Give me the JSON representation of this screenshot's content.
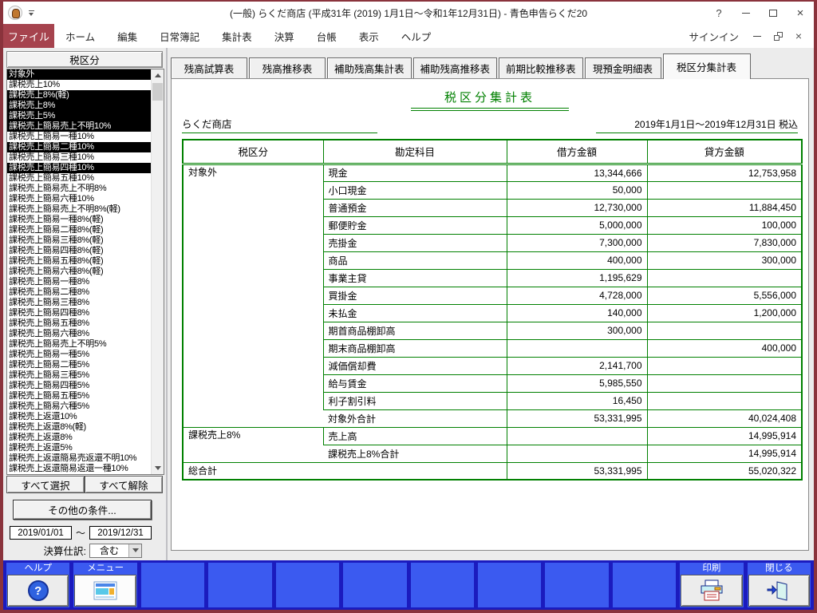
{
  "window": {
    "title": "(一般) らくだ商店 (平成31年 (2019) 1月1日～令和1年12月31日) - 青色申告らくだ20",
    "help_glyph": "?"
  },
  "menu": {
    "file_label": "ファイル",
    "items": [
      "ホーム",
      "編集",
      "日常簿記",
      "集計表",
      "決算",
      "台帳",
      "表示",
      "ヘルプ"
    ],
    "signin_label": "サインイン"
  },
  "sidebar": {
    "header": "税区分",
    "items": [
      {
        "label": "対象外",
        "selected": true
      },
      {
        "label": "課税売上10%",
        "selected": false
      },
      {
        "label": "課税売上8%(軽)",
        "selected": true
      },
      {
        "label": "課税売上8%",
        "selected": true
      },
      {
        "label": "課税売上5%",
        "selected": true
      },
      {
        "label": "課税売上簡易売上不明10%",
        "selected": true
      },
      {
        "label": "課税売上簡易一種10%",
        "selected": false
      },
      {
        "label": "課税売上簡易二種10%",
        "selected": true
      },
      {
        "label": "課税売上簡易三種10%",
        "selected": false
      },
      {
        "label": "課税売上簡易四種10%",
        "selected": true
      },
      {
        "label": "課税売上簡易五種10%",
        "selected": false
      },
      {
        "label": "課税売上簡易売上不明8%",
        "selected": false
      },
      {
        "label": "課税売上簡易六種10%",
        "selected": false
      },
      {
        "label": "課税売上簡易売上不明8%(軽)",
        "selected": false
      },
      {
        "label": "課税売上簡易一種8%(軽)",
        "selected": false
      },
      {
        "label": "課税売上簡易二種8%(軽)",
        "selected": false
      },
      {
        "label": "課税売上簡易三種8%(軽)",
        "selected": false
      },
      {
        "label": "課税売上簡易四種8%(軽)",
        "selected": false
      },
      {
        "label": "課税売上簡易五種8%(軽)",
        "selected": false
      },
      {
        "label": "課税売上簡易六種8%(軽)",
        "selected": false
      },
      {
        "label": "課税売上簡易一種8%",
        "selected": false
      },
      {
        "label": "課税売上簡易二種8%",
        "selected": false
      },
      {
        "label": "課税売上簡易三種8%",
        "selected": false
      },
      {
        "label": "課税売上簡易四種8%",
        "selected": false
      },
      {
        "label": "課税売上簡易五種8%",
        "selected": false
      },
      {
        "label": "課税売上簡易六種8%",
        "selected": false
      },
      {
        "label": "課税売上簡易売上不明5%",
        "selected": false
      },
      {
        "label": "課税売上簡易一種5%",
        "selected": false
      },
      {
        "label": "課税売上簡易二種5%",
        "selected": false
      },
      {
        "label": "課税売上簡易三種5%",
        "selected": false
      },
      {
        "label": "課税売上簡易四種5%",
        "selected": false
      },
      {
        "label": "課税売上簡易五種5%",
        "selected": false
      },
      {
        "label": "課税売上簡易六種5%",
        "selected": false
      },
      {
        "label": "課税売上返還10%",
        "selected": false
      },
      {
        "label": "課税売上返還8%(軽)",
        "selected": false
      },
      {
        "label": "課税売上返還8%",
        "selected": false
      },
      {
        "label": "課税売上返還5%",
        "selected": false
      },
      {
        "label": "課税売上返還簡易売返還不明10%",
        "selected": false
      },
      {
        "label": "課税売上返還簡易返還一種10%",
        "selected": false
      }
    ],
    "select_all": "すべて選択",
    "clear_all": "すべて解除",
    "other_conditions": "その他の条件...",
    "date_from": "2019/01/01",
    "date_separator": "～",
    "date_to": "2019/12/31",
    "closing_label": "決算仕訳:",
    "closing_value": "含む"
  },
  "tabs": {
    "labels": [
      "残高試算表",
      "残高推移表",
      "補助残高集計表",
      "補助残高推移表",
      "前期比較推移表",
      "現預金明細表",
      "税区分集計表"
    ],
    "active_index": 6
  },
  "report": {
    "title": "税区分集計表",
    "company": "らくだ商店",
    "period": "2019年1月1日～2019年12月31日 税込",
    "columns": [
      "税区分",
      "勘定科目",
      "借方金額",
      "貸方金額"
    ],
    "rows": [
      {
        "tax": "対象外",
        "tax_rowspan": 15,
        "type": "normal",
        "account": "現金",
        "debit": "13,344,666",
        "credit": "12,753,958"
      },
      {
        "type": "normal",
        "account": "小口現金",
        "debit": "50,000",
        "credit": ""
      },
      {
        "type": "normal",
        "account": "普通預金",
        "debit": "12,730,000",
        "credit": "11,884,450"
      },
      {
        "type": "normal",
        "account": "郵便貯金",
        "debit": "5,000,000",
        "credit": "100,000"
      },
      {
        "type": "normal",
        "account": "売掛金",
        "debit": "7,300,000",
        "credit": "7,830,000"
      },
      {
        "type": "normal",
        "account": "商品",
        "debit": "400,000",
        "credit": "300,000"
      },
      {
        "type": "normal",
        "account": "事業主貸",
        "debit": "1,195,629",
        "credit": ""
      },
      {
        "type": "normal",
        "account": "買掛金",
        "debit": "4,728,000",
        "credit": "5,556,000"
      },
      {
        "type": "normal",
        "account": "未払金",
        "debit": "140,000",
        "credit": "1,200,000"
      },
      {
        "type": "normal",
        "account": "期首商品棚卸高",
        "debit": "300,000",
        "credit": ""
      },
      {
        "type": "normal",
        "account": "期末商品棚卸高",
        "debit": "",
        "credit": "400,000"
      },
      {
        "type": "normal",
        "account": "減価償却費",
        "debit": "2,141,700",
        "credit": ""
      },
      {
        "type": "normal",
        "account": "給与賃金",
        "debit": "5,985,550",
        "credit": ""
      },
      {
        "type": "normal",
        "account": "利子割引料",
        "debit": "16,450",
        "credit": ""
      },
      {
        "type": "subtotal",
        "account": "対象外合計",
        "debit": "53,331,995",
        "credit": "40,024,408"
      },
      {
        "tax": "課税売上8%",
        "tax_rowspan": 2,
        "type": "normal",
        "account": "売上高",
        "debit": "",
        "credit": "14,995,914"
      },
      {
        "type": "subtotal",
        "account": "課税売上8%合計",
        "debit": "",
        "credit": "14,995,914"
      },
      {
        "type": "grandtotal",
        "account": "総合計",
        "debit": "53,331,995",
        "credit": "55,020,322"
      }
    ]
  },
  "fnbar": {
    "slots": [
      {
        "label": "ヘルプ",
        "icon": "help-icon"
      },
      {
        "label": "メニュー",
        "icon": "menu-icon"
      },
      {
        "label": "",
        "icon": ""
      },
      {
        "label": "",
        "icon": ""
      },
      {
        "label": "",
        "icon": ""
      },
      {
        "label": "",
        "icon": ""
      },
      {
        "label": "",
        "icon": ""
      },
      {
        "label": "",
        "icon": ""
      },
      {
        "label": "",
        "icon": ""
      },
      {
        "label": "",
        "icon": ""
      },
      {
        "label": "印刷",
        "icon": "print-icon"
      },
      {
        "label": "閉じる",
        "icon": "exit-icon"
      }
    ]
  },
  "colors": {
    "report_green": "#008000",
    "file_tab_red": "#a6434e",
    "window_border": "#8a333c",
    "fnbar_background": "#1b1bbe",
    "fnbar_slot_blue": "#3b5af0",
    "selection_black": "#000000"
  }
}
